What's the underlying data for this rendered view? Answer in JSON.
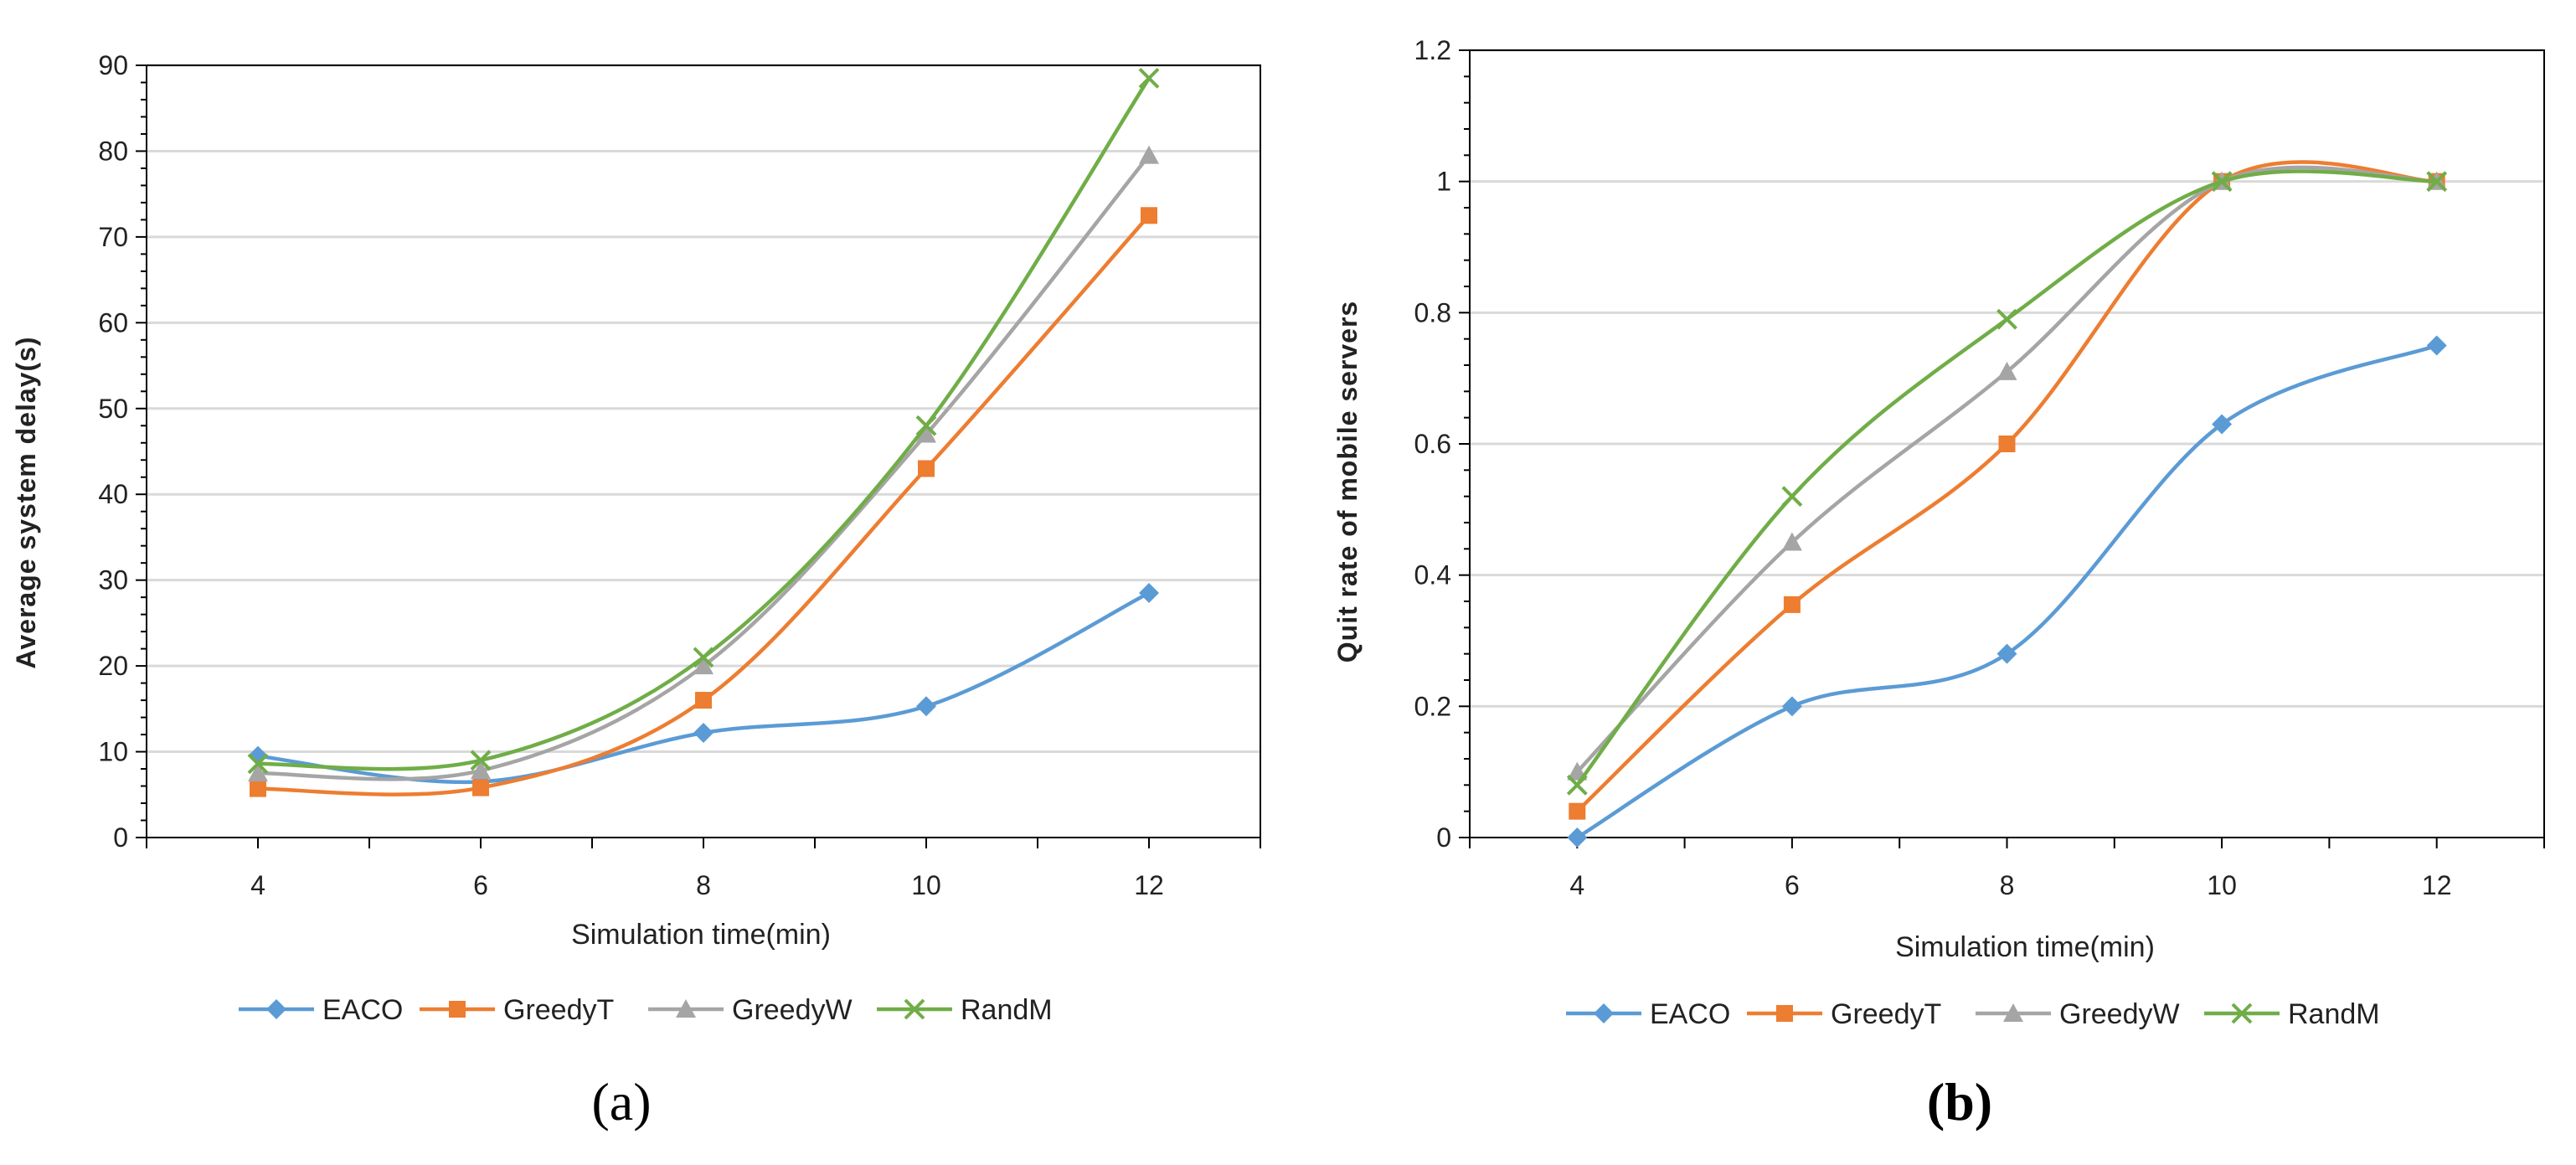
{
  "colors": {
    "EACO": "#5b9bd5",
    "GreedyT": "#ed7d31",
    "GreedyW": "#a5a5a5",
    "RandM": "#70ad47",
    "grid": "#d9d9d9",
    "axis": "#000000"
  },
  "chart_data": [
    {
      "type": "line",
      "panel": "(a)",
      "title": "",
      "xlabel": "Simulation time(min)",
      "ylabel": "Average system delay(s)",
      "x": [
        4,
        6,
        8,
        10,
        12
      ],
      "x_ticks": [
        "4",
        "6",
        "8",
        "10",
        "12"
      ],
      "y_ticks": [
        "0",
        "10",
        "20",
        "30",
        "40",
        "50",
        "60",
        "70",
        "80",
        "90"
      ],
      "ylim": [
        0,
        90
      ],
      "grid": true,
      "legend_position": "bottom",
      "series": [
        {
          "name": "EACO",
          "marker": "diamond",
          "values": [
            9.5,
            6.5,
            12.2,
            15.3,
            28.5
          ]
        },
        {
          "name": "GreedyT",
          "marker": "square",
          "values": [
            5.7,
            5.8,
            16,
            43,
            72.5
          ]
        },
        {
          "name": "GreedyW",
          "marker": "triangle",
          "values": [
            7.5,
            7.8,
            20,
            47,
            79.5
          ]
        },
        {
          "name": "RandM",
          "marker": "x",
          "values": [
            8.6,
            9.0,
            21,
            48,
            88.5
          ]
        }
      ]
    },
    {
      "type": "line",
      "panel": "(b)",
      "title": "",
      "xlabel": "Simulation time(min)",
      "ylabel": "Quit rate of mobile servers",
      "x": [
        4,
        6,
        8,
        10,
        12
      ],
      "x_ticks": [
        "4",
        "6",
        "8",
        "10",
        "12"
      ],
      "y_ticks": [
        "0",
        "0.2",
        "0.4",
        "0.6",
        "0.8",
        "1",
        "1.2"
      ],
      "ylim": [
        0,
        1.2
      ],
      "grid": true,
      "legend_position": "bottom",
      "series": [
        {
          "name": "EACO",
          "marker": "diamond",
          "values": [
            0.0,
            0.2,
            0.28,
            0.63,
            0.75
          ]
        },
        {
          "name": "GreedyT",
          "marker": "square",
          "values": [
            0.04,
            0.355,
            0.6,
            1.0,
            1.0
          ]
        },
        {
          "name": "GreedyW",
          "marker": "triangle",
          "values": [
            0.1,
            0.45,
            0.71,
            1.0,
            1.0
          ]
        },
        {
          "name": "RandM",
          "marker": "x",
          "values": [
            0.08,
            0.52,
            0.79,
            1.0,
            1.0
          ]
        }
      ]
    }
  ]
}
